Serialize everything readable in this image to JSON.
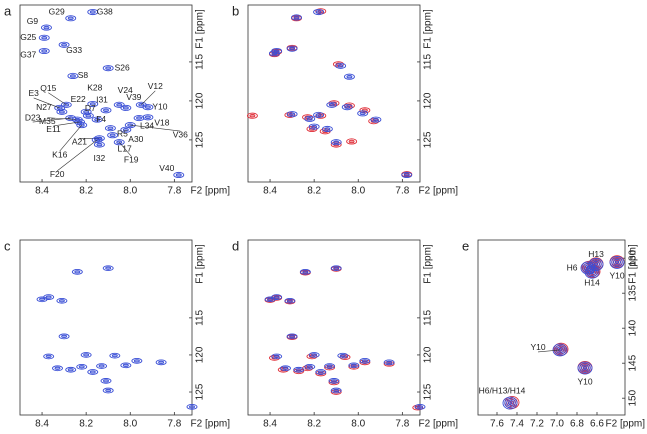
{
  "chart_data": [
    {
      "type": "contour",
      "panel": "a",
      "xlabel": "F2 [ppm]",
      "ylabel": "F1 [ppm]",
      "xlim": [
        8.5,
        7.72
      ],
      "ylim": [
        107.7,
        130.4
      ],
      "xticks": [
        8.4,
        8.2,
        {
          "value": 8,
          "label": "8.0"
        },
        7.8
      ],
      "yticks": [
        115,
        120,
        125
      ],
      "series": [
        {
          "color": "#3a4fd6",
          "labels": [
            "G29",
            "G38",
            "G9",
            "G25",
            "G37",
            "G33",
            "S8",
            "S26",
            "Q15",
            "E3",
            "N27",
            "D23",
            "M35",
            "E11",
            "K16",
            "E22",
            "K28",
            "D7",
            "I31",
            "F4",
            "V24",
            "V39",
            "V12",
            "Y10",
            "V18",
            "L34",
            "V36",
            "A30",
            "R5",
            "L17",
            "A21",
            "I32",
            "F20",
            "F19",
            "V40"
          ],
          "x": [
            8.27,
            8.17,
            8.38,
            8.39,
            8.39,
            8.3,
            8.26,
            8.1,
            8.29,
            8.32,
            8.31,
            8.27,
            8.24,
            8.23,
            8.22,
            8.2,
            8.17,
            8.19,
            8.11,
            8.15,
            8.05,
            8.02,
            7.95,
            7.92,
            7.92,
            7.96,
            8.0,
            8.02,
            8.09,
            8.08,
            8.14,
            8.14,
            8.15,
            8.05,
            7.78
          ],
          "y": [
            109.4,
            108.6,
            110.6,
            111.9,
            113.6,
            112.8,
            116.8,
            115.8,
            120.5,
            120.9,
            121.4,
            122.2,
            122.4,
            122.7,
            123.1,
            121.4,
            120.4,
            121.9,
            121.2,
            122.4,
            120.5,
            120.9,
            120.5,
            120.8,
            122.1,
            122.2,
            123.1,
            123.7,
            123.5,
            124.4,
            124.8,
            125.6,
            125.0,
            125.3,
            129.5
          ]
        }
      ]
    },
    {
      "type": "contour",
      "panel": "b",
      "xlabel": "F2 [ppm]",
      "ylabel": "F1 [ppm]",
      "xlim": [
        8.5,
        7.72
      ],
      "ylim": [
        107.7,
        130.4
      ],
      "xticks": [
        8.4,
        8.2,
        {
          "value": 8,
          "label": "8.0"
        },
        7.8
      ],
      "yticks": [
        115,
        120,
        125
      ],
      "series": [
        {
          "color": "#e0303a",
          "x": [
            8.28,
            8.17,
            8.37,
            8.38,
            8.3,
            8.09,
            8.48,
            8.31,
            8.23,
            8.17,
            8.11,
            8.04,
            7.97,
            7.93,
            8.21,
            8.15,
            8.1,
            8.03,
            7.78
          ],
          "y": [
            109.4,
            108.5,
            113.7,
            114.0,
            113.2,
            115.3,
            121.9,
            121.8,
            122.1,
            121.9,
            120.3,
            120.6,
            121.2,
            122.6,
            123.6,
            123.9,
            125.6,
            125.2,
            129.4
          ]
        },
        {
          "color": "#3a4fd6",
          "x": [
            8.28,
            8.18,
            8.37,
            8.38,
            8.3,
            8.08,
            8.04,
            8.3,
            8.22,
            8.18,
            8.12,
            8.05,
            7.98,
            7.92,
            8.2,
            8.14,
            8.1,
            7.78
          ],
          "y": [
            109.3,
            108.6,
            113.6,
            113.9,
            113.3,
            115.5,
            116.9,
            121.7,
            122.3,
            121.8,
            120.5,
            120.8,
            121.6,
            122.4,
            123.3,
            123.6,
            125.3,
            129.5
          ]
        }
      ]
    },
    {
      "type": "contour",
      "panel": "c",
      "xlabel": "F2 [ppm]",
      "ylabel": "F1 [ppm]",
      "xlim": [
        8.5,
        7.72
      ],
      "ylim": [
        104.5,
        128.1
      ],
      "xticks": [
        8.4,
        8.2,
        {
          "value": 8,
          "label": "8.0"
        },
        7.8
      ],
      "yticks": [
        115,
        120,
        125
      ],
      "series": [
        {
          "color": "#3a4fd6",
          "x": [
            8.1,
            8.24,
            8.37,
            8.4,
            8.31,
            8.3,
            8.37,
            8.2,
            8.33,
            8.27,
            8.22,
            8.17,
            8.13,
            8.07,
            8.02,
            7.97,
            7.86,
            8.11,
            8.1,
            7.72
          ],
          "y": [
            108.3,
            108.8,
            112.2,
            112.5,
            112.7,
            117.5,
            120.2,
            120.0,
            121.8,
            122.0,
            121.6,
            122.3,
            121.5,
            120.1,
            121.4,
            120.8,
            121.0,
            123.5,
            124.8,
            127.0
          ]
        }
      ]
    },
    {
      "type": "contour",
      "panel": "d",
      "xlabel": "F2 [ppm]",
      "ylabel": "F1 [ppm]",
      "xlim": [
        8.5,
        7.72
      ],
      "ylim": [
        104.5,
        128.1
      ],
      "xticks": [
        8.4,
        8.2,
        {
          "value": 8,
          "label": "8.0"
        },
        7.8
      ],
      "yticks": [
        115,
        120,
        125
      ],
      "series": [
        {
          "color": "#e0303a",
          "x": [
            8.1,
            8.24,
            8.37,
            8.4,
            8.31,
            8.3,
            8.38,
            8.21,
            8.34,
            8.27,
            8.23,
            8.17,
            8.13,
            8.06,
            8.02,
            7.97,
            7.86,
            8.11,
            8.1,
            7.73
          ],
          "y": [
            108.4,
            108.9,
            112.3,
            112.6,
            112.8,
            117.6,
            120.4,
            120.2,
            122.0,
            122.2,
            121.8,
            122.5,
            121.7,
            120.3,
            121.6,
            121.0,
            121.2,
            123.7,
            125.0,
            127.1
          ]
        },
        {
          "color": "#3a4fd6",
          "x": [
            8.1,
            8.24,
            8.37,
            8.4,
            8.31,
            8.3,
            8.37,
            8.2,
            8.33,
            8.27,
            8.22,
            8.17,
            8.13,
            8.07,
            8.02,
            7.97,
            7.86,
            8.11,
            8.1,
            7.72
          ],
          "y": [
            108.3,
            108.8,
            112.2,
            112.5,
            112.7,
            117.5,
            120.2,
            120.0,
            121.8,
            122.0,
            121.6,
            122.3,
            121.5,
            120.1,
            121.4,
            120.8,
            121.0,
            123.5,
            124.8,
            127.0
          ]
        }
      ]
    },
    {
      "type": "contour",
      "panel": "e",
      "xlabel": "F2 [ppm]",
      "ylabel": "F1 [ppm]",
      "xlim": [
        7.79,
        6.32
      ],
      "ylim": [
        127.4,
        152.4
      ],
      "xticks": [
        7.6,
        7.4,
        7.2,
        {
          "value": 7,
          "label": "7.0"
        },
        6.8,
        6.6
      ],
      "yticks": [
        130,
        135,
        140,
        145,
        150
      ],
      "series": [
        {
          "color": "#e0303a",
          "x": [
            6.68,
            6.61,
            6.64,
            6.4,
            6.96,
            6.72,
            7.45
          ],
          "y": [
            131.3,
            130.8,
            131.9,
            130.5,
            143.0,
            145.6,
            150.6
          ]
        },
        {
          "color": "#3a4fd6",
          "labels": [
            "H6",
            "H13",
            "H14",
            "Y10",
            "Y10",
            "Y10",
            "H6/H13/H14"
          ],
          "x": [
            6.69,
            6.61,
            6.65,
            6.4,
            6.97,
            6.72,
            7.47
          ],
          "y": [
            131.4,
            130.9,
            132.0,
            130.6,
            143.1,
            145.7,
            150.7
          ]
        }
      ]
    }
  ]
}
